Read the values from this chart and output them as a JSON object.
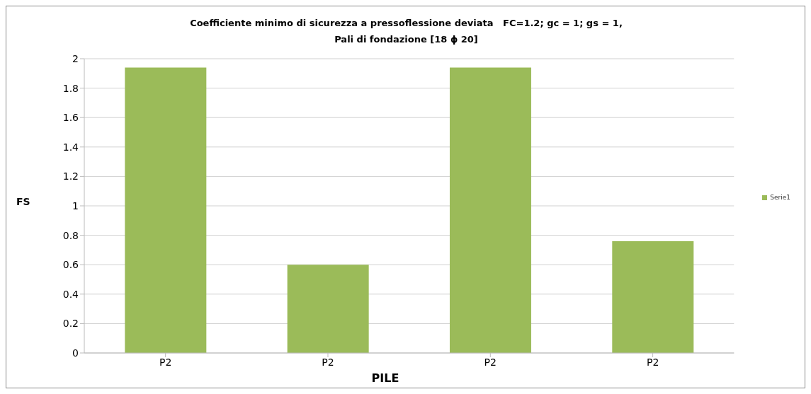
{
  "chart_data": {
    "type": "bar",
    "title": "Coefficiente minimo di sicurezza a pressoflessione deviata   FC=1.2; gc = 1; gs = 1,\nPali di fondazione [18 ϕ 20]",
    "xlabel": "PILE",
    "ylabel": "FS",
    "categories": [
      "P2",
      "P2",
      "P2",
      "P2"
    ],
    "series": [
      {
        "name": "Serie1",
        "color": "#9bbb59",
        "values": [
          1.94,
          0.6,
          1.94,
          0.76
        ]
      }
    ],
    "ylim": [
      0,
      2
    ],
    "yticks": [
      0,
      0.2,
      0.4,
      0.6,
      0.8,
      1,
      1.2,
      1.4,
      1.6,
      1.8,
      2
    ],
    "grid": "y",
    "legend": "right"
  }
}
